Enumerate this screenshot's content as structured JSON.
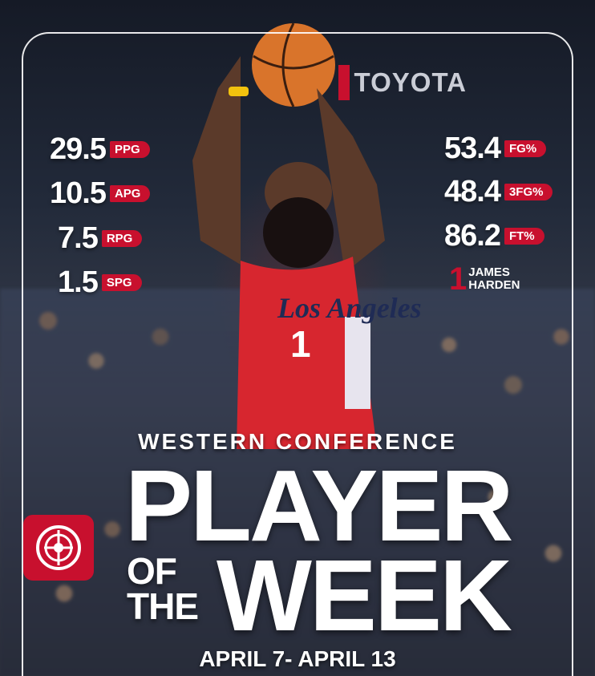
{
  "sponsor": {
    "name": "TOYOTA"
  },
  "stats_left": [
    {
      "value": "29.5",
      "label": "PPG"
    },
    {
      "value": "10.5",
      "label": "APG"
    },
    {
      "value": "7.5",
      "label": "RPG"
    },
    {
      "value": "1.5",
      "label": "SPG"
    }
  ],
  "stats_right": [
    {
      "value": "53.4",
      "label": "FG%"
    },
    {
      "value": "48.4",
      "label": "3FG%"
    },
    {
      "value": "86.2",
      "label": "FT%"
    }
  ],
  "player": {
    "number": "1",
    "first_name": "JAMES",
    "last_name": "HARDEN",
    "jersey_script": "Los Angeles",
    "jersey_number": "1"
  },
  "headline": {
    "conference": "WESTERN CONFERENCE",
    "line1": "PLAYER",
    "of": "OF",
    "the": "THE",
    "line2": "WEEK",
    "dates": "APRIL 7- APRIL 13"
  },
  "colors": {
    "accent": "#c8102e",
    "text": "#ffffff"
  },
  "icons": {
    "logo": "team-shield-logo-icon"
  }
}
